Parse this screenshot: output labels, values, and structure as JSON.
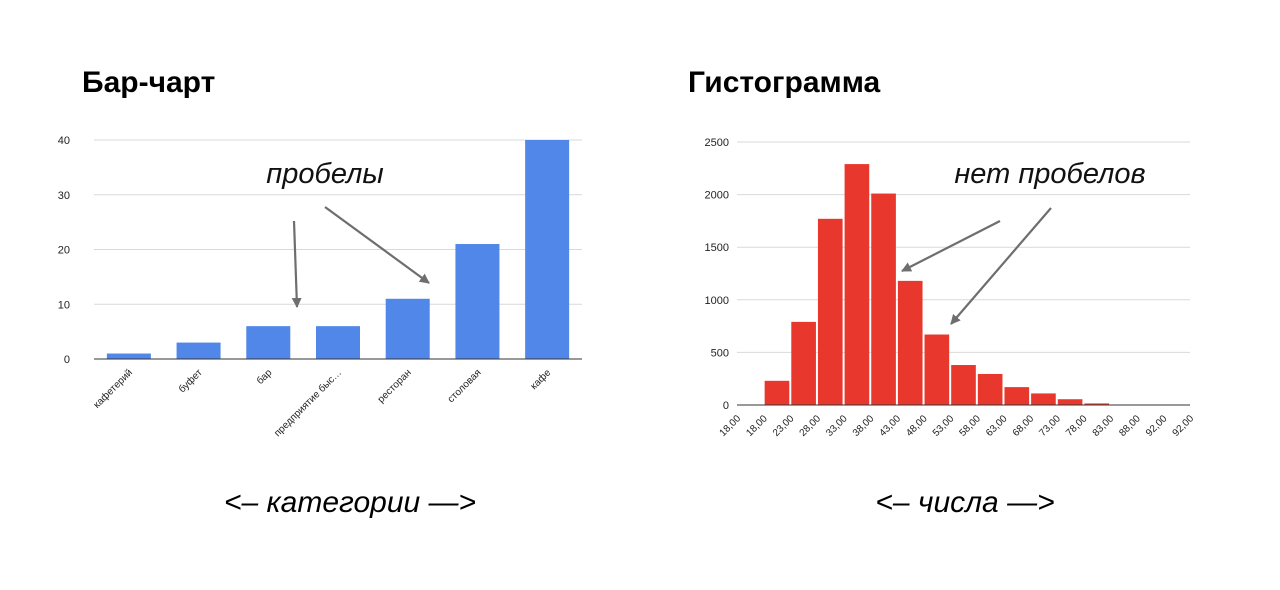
{
  "left_title": "Бар-чарт",
  "right_title": "Гистограмма",
  "left_caption": "<– категории —>",
  "right_caption": "<– числа —>",
  "colors": {
    "bar": "#5087e8",
    "hist": "#e8372c",
    "grid": "#d9d9d9",
    "axis": "#333333",
    "arrow": "#6e6e6e"
  },
  "chart_data": [
    {
      "type": "bar",
      "title": "Бар-чарт",
      "categories": [
        "кафетерий",
        "буфет",
        "бар",
        "предприятие быс…",
        "ресторан",
        "столовая",
        "кафе"
      ],
      "values": [
        1,
        3,
        6,
        6,
        11,
        21,
        40
      ],
      "ylim": [
        0,
        40
      ],
      "yticks": [
        0,
        10,
        20,
        30,
        40
      ],
      "grid": true,
      "annotation": "пробелы"
    },
    {
      "type": "bar",
      "title": "Гистограмма",
      "xticks": [
        "18,00",
        "18,00",
        "23,00",
        "28,00",
        "33,00",
        "38,00",
        "43,00",
        "48,00",
        "53,00",
        "58,00",
        "63,00",
        "68,00",
        "73,00",
        "78,00",
        "83,00",
        "88,00",
        "92,00",
        "92,00"
      ],
      "values": [
        0,
        230,
        790,
        1770,
        2290,
        2010,
        1180,
        670,
        380,
        295,
        170,
        110,
        55,
        15,
        4,
        2,
        0
      ],
      "ylim": [
        0,
        2500
      ],
      "yticks": [
        0,
        500,
        1000,
        1500,
        2000,
        2500
      ],
      "grid": true,
      "annotation": "нет пробелов"
    }
  ]
}
